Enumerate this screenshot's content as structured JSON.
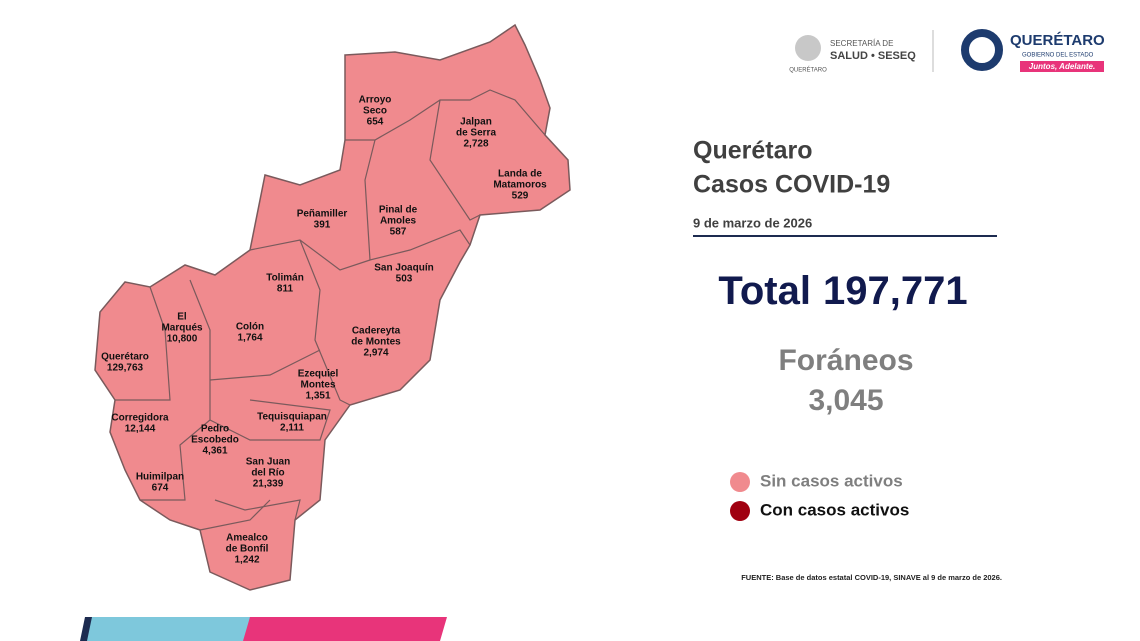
{
  "logos": {
    "secretaria": "SECRETARÍA DE",
    "salud": "SALUD • SESEQ",
    "small": "QUERÉTARO",
    "state": "QUERÉTARO",
    "gobierno": "GOBIERNO DEL ESTADO",
    "slogan": "Juntos, Adelante."
  },
  "header": {
    "title": "Querétaro",
    "subtitle": "Casos COVID-19",
    "date": "9 de marzo de 2026"
  },
  "total": {
    "label": "Total",
    "value": "197,771"
  },
  "foraneos": {
    "label": "Foráneos",
    "value": "3,045"
  },
  "legend": [
    {
      "label": "Sin casos activos",
      "color": "#f08a8e"
    },
    {
      "label": "Con casos activos",
      "color": "#a00010"
    }
  ],
  "source": "FUENTE: Base de datos estatal COVID-19, SINAVE al 9 de marzo de 2026.",
  "municipalities": [
    {
      "name": [
        "Arroyo",
        "Seco"
      ],
      "cases": "654"
    },
    {
      "name": [
        "Jalpan",
        "de Serra"
      ],
      "cases": "2,728"
    },
    {
      "name": [
        "Landa de",
        "Matamoros"
      ],
      "cases": "529"
    },
    {
      "name": [
        "Peñamiller"
      ],
      "cases": "391"
    },
    {
      "name": [
        "Pinal de",
        "Amoles"
      ],
      "cases": "587"
    },
    {
      "name": [
        "San Joaquín"
      ],
      "cases": "503"
    },
    {
      "name": [
        "Tolimán"
      ],
      "cases": "811"
    },
    {
      "name": [
        "El",
        "Marqués"
      ],
      "cases": "10,800"
    },
    {
      "name": [
        "Colón"
      ],
      "cases": "1,764"
    },
    {
      "name": [
        "Cadereyta",
        "de Montes"
      ],
      "cases": "2,974"
    },
    {
      "name": [
        "Querétaro"
      ],
      "cases": "129,763"
    },
    {
      "name": [
        "Ezequiel",
        "Montes"
      ],
      "cases": "1,351"
    },
    {
      "name": [
        "Corregidora"
      ],
      "cases": "12,144"
    },
    {
      "name": [
        "Tequisquiapan"
      ],
      "cases": "2,111"
    },
    {
      "name": [
        "Pedro",
        "Escobedo"
      ],
      "cases": "4,361"
    },
    {
      "name": [
        "San Juan",
        "del Río"
      ],
      "cases": "21,339"
    },
    {
      "name": [
        "Huimilpan"
      ],
      "cases": "674"
    },
    {
      "name": [
        "Amealco",
        "de Bonfil"
      ],
      "cases": "1,242"
    }
  ]
}
